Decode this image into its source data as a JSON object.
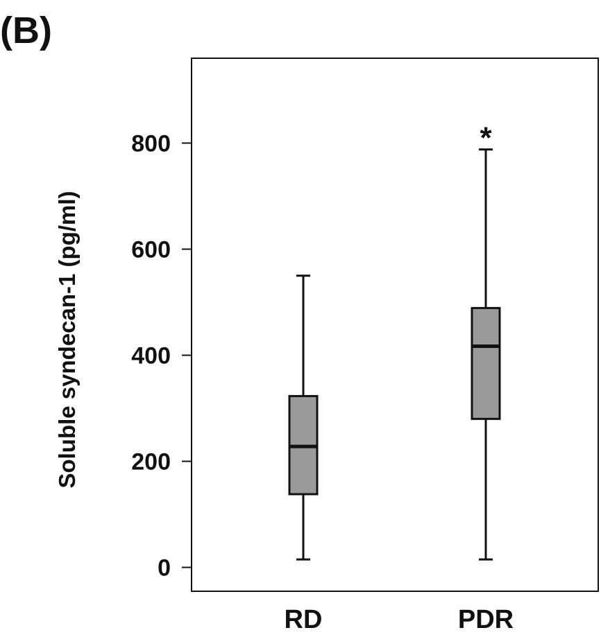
{
  "panel_label": "(B)",
  "chart_data": {
    "type": "box",
    "title": "",
    "xlabel": "",
    "ylabel": "Soluble syndecan-1 (pg/ml)",
    "categories": [
      "RD",
      "PDR"
    ],
    "ylim": [
      -45,
      960
    ],
    "yticks": [
      0,
      200,
      400,
      600,
      800
    ],
    "ytick_labels": [
      "0",
      "200",
      "400",
      "600",
      "800"
    ],
    "grid": false,
    "legend": "none",
    "box_color": "#9a9a9a",
    "line_color": "#111111",
    "boxes": [
      {
        "category": "RD",
        "whisker_low": 15,
        "q1": 138,
        "median": 228,
        "q3": 323,
        "whisker_high": 550,
        "annotation": ""
      },
      {
        "category": "PDR",
        "whisker_low": 15,
        "q1": 280,
        "median": 417,
        "q3": 489,
        "whisker_high": 788,
        "annotation": "*"
      }
    ]
  }
}
